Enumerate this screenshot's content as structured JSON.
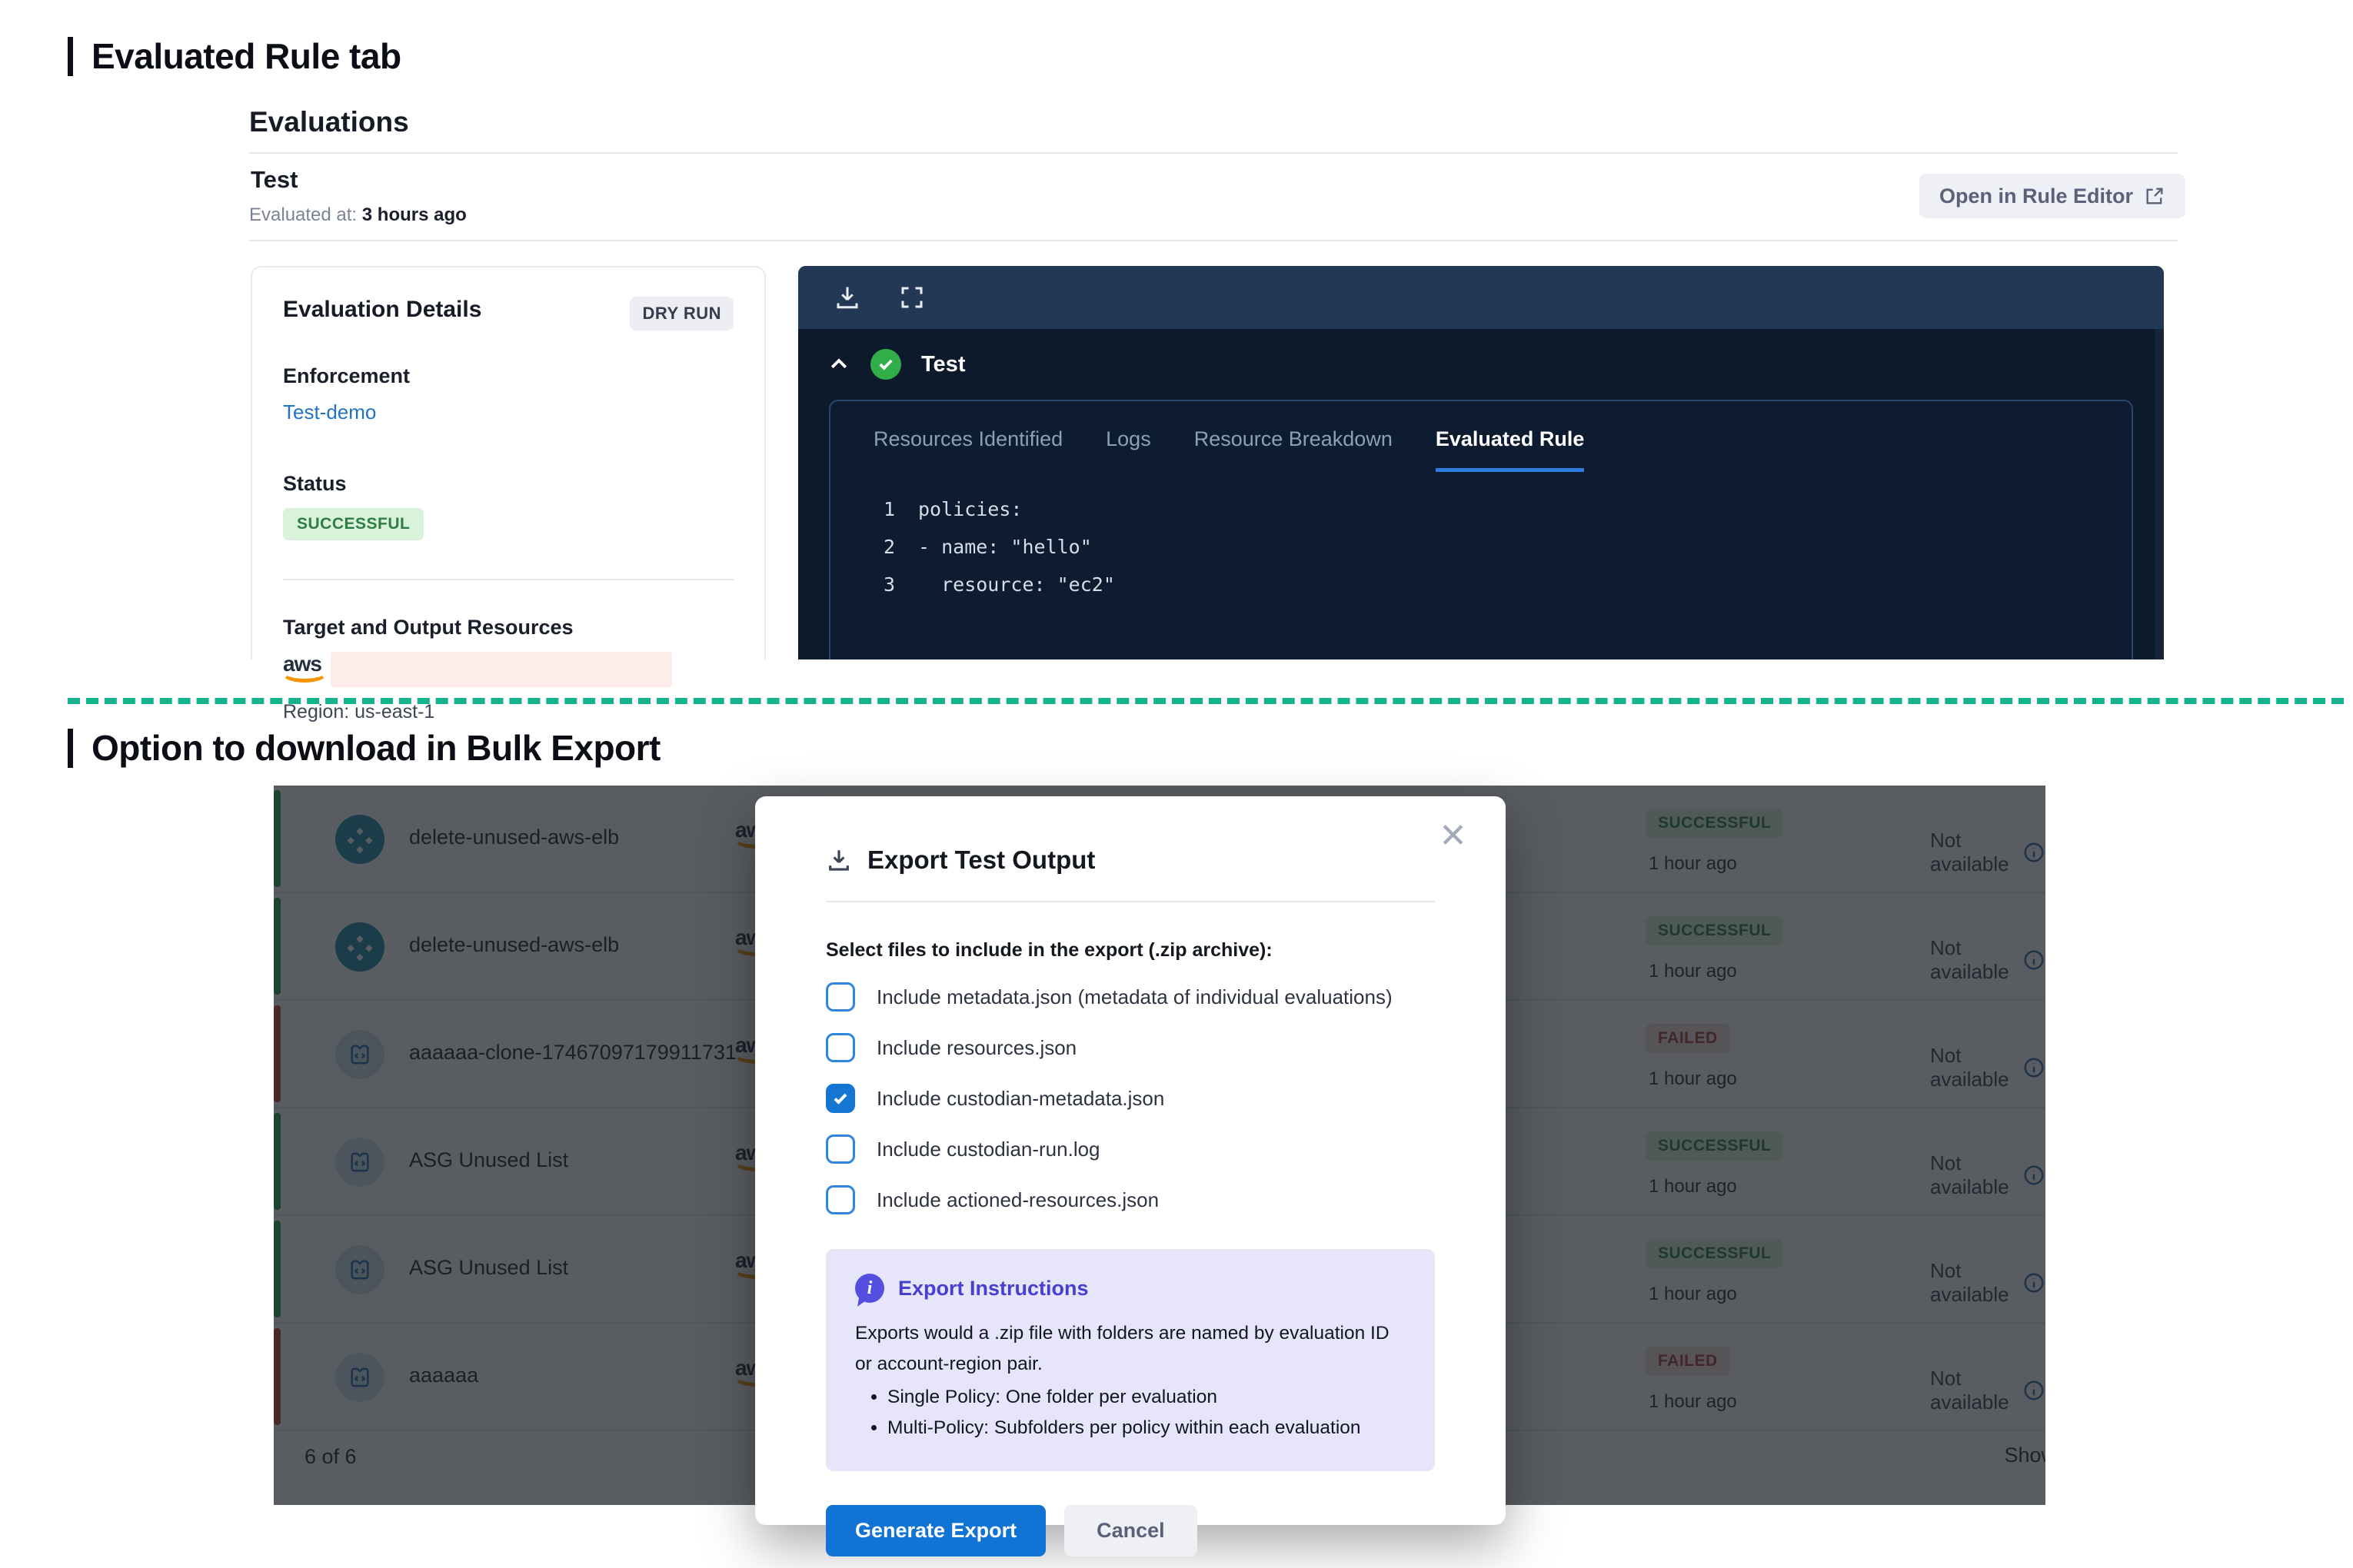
{
  "section1": {
    "heading": "Evaluated Rule tab",
    "evaluations": {
      "header": "Evaluations",
      "name": "Test",
      "evaluated_label": "Evaluated at:",
      "evaluated_value": "3 hours ago",
      "open_button": "Open in Rule Editor"
    },
    "details": {
      "title": "Evaluation Details",
      "badge": "DRY RUN",
      "enforcement_label": "Enforcement",
      "enforcement_value": "Test-demo",
      "status_label": "Status",
      "status_value": "SUCCESSFUL",
      "target_label": "Target and Output Resources",
      "aws_logo": "aws",
      "region": "Region: us-east-1"
    },
    "viewer": {
      "title": "Test",
      "tabs": [
        "Resources Identified",
        "Logs",
        "Resource Breakdown",
        "Evaluated Rule"
      ],
      "active_tab": "Evaluated Rule",
      "code_lines": [
        {
          "n": "1",
          "c": "policies:"
        },
        {
          "n": "2",
          "c": "- name: \"hello\""
        },
        {
          "n": "3",
          "c": "  resource: \"ec2\""
        }
      ]
    }
  },
  "section2": {
    "heading": "Option to download in Bulk Export",
    "table": {
      "rows": [
        {
          "name": "delete-unused-aws-elb",
          "status": "SUCCESSFUL",
          "time": "1 hour ago",
          "availability": "Not available",
          "accent": "green",
          "icon": "teal"
        },
        {
          "name": "delete-unused-aws-elb",
          "status": "SUCCESSFUL",
          "time": "1 hour ago",
          "availability": "Not available",
          "accent": "green",
          "icon": "teal"
        },
        {
          "name": "aaaaaa-clone-17467097179911731",
          "status": "FAILED",
          "time": "1 hour ago",
          "availability": "Not available",
          "accent": "red",
          "icon": "light"
        },
        {
          "name": "ASG Unused List",
          "status": "SUCCESSFUL",
          "time": "1 hour ago",
          "availability": "Not available",
          "accent": "green",
          "icon": "light"
        },
        {
          "name": "ASG Unused List",
          "status": "SUCCESSFUL",
          "time": "1 hour ago",
          "availability": "Not available",
          "accent": "green",
          "icon": "light"
        },
        {
          "name": "aaaaaa",
          "status": "FAILED",
          "time": "1 hour ago",
          "availability": "Not available",
          "accent": "red",
          "icon": "light"
        }
      ],
      "aws_logo": "aws",
      "footer_count": "6 of 6",
      "footer_show": "Show"
    },
    "modal": {
      "title": "Export Test Output",
      "close": "✕",
      "select_label": "Select files to include in the export (.zip archive):",
      "checkboxes": [
        {
          "label": "Include metadata.json (metadata of individual evaluations)",
          "checked": false
        },
        {
          "label": "Include resources.json",
          "checked": false
        },
        {
          "label": "Include custodian-metadata.json",
          "checked": true
        },
        {
          "label": "Include custodian-run.log",
          "checked": false
        },
        {
          "label": "Include actioned-resources.json",
          "checked": false
        }
      ],
      "instructions": {
        "title": "Export Instructions",
        "body": "Exports would a .zip file with folders are named by evaluation ID or account-region pair.",
        "bullets": [
          "Single Policy: One folder per evaluation",
          "Multi-Policy: Subfolders per policy within each evaluation"
        ]
      },
      "generate_button": "Generate Export",
      "cancel_button": "Cancel"
    }
  },
  "colors": {
    "accent_blue": "#1173d3",
    "success_green": "#2e7d43",
    "failed_red": "#ac3a34",
    "divider_teal": "#13b38b",
    "panel_navy": "#0c1a2c",
    "indigo": "#473fd1"
  }
}
